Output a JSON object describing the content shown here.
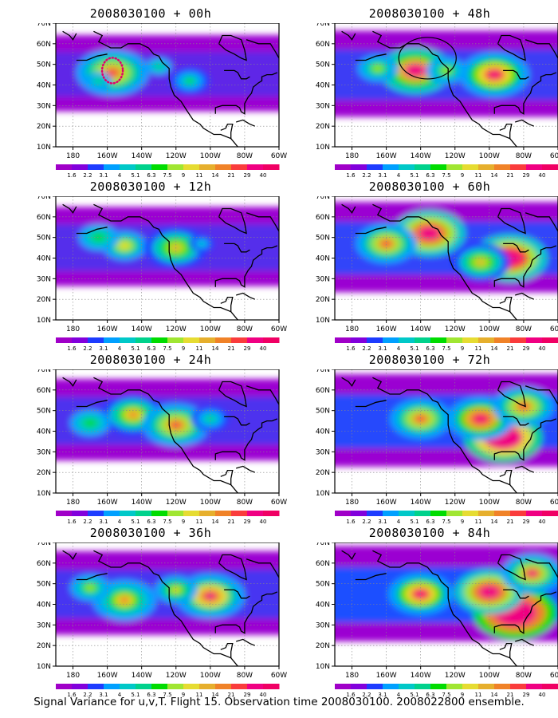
{
  "panels": [
    {
      "title": "2008030100 + 00h",
      "intensity": 0.28,
      "circle": true,
      "circle_style": "dotted-magenta",
      "hotspots": [
        [
          -157,
          46,
          1.2
        ],
        [
          -130,
          49,
          0.5
        ],
        [
          -112,
          42,
          0.6
        ],
        [
          -165,
          42,
          0.5
        ]
      ]
    },
    {
      "title": "2008030100 + 48h",
      "intensity": 0.55,
      "circle": true,
      "circle_style": "solid-black",
      "hotspots": [
        [
          -143,
          47,
          1.2
        ],
        [
          -97,
          45,
          1.1
        ],
        [
          -125,
          47,
          0.6
        ],
        [
          -165,
          48,
          0.6
        ]
      ]
    },
    {
      "title": "2008030100 + 12h",
      "intensity": 0.36,
      "circle": false,
      "hotspots": [
        [
          -150,
          46,
          0.8
        ],
        [
          -120,
          45,
          0.9
        ],
        [
          -165,
          50,
          0.6
        ],
        [
          -105,
          47,
          0.4
        ]
      ]
    },
    {
      "title": "2008030100 + 60h",
      "intensity": 0.66,
      "circle": false,
      "hotspots": [
        [
          -135,
          52,
          1.2
        ],
        [
          -88,
          40,
          1.3
        ],
        [
          -160,
          47,
          0.8
        ],
        [
          -105,
          38,
          0.7
        ]
      ]
    },
    {
      "title": "2008030100 + 24h",
      "intensity": 0.42,
      "circle": false,
      "hotspots": [
        [
          -145,
          48,
          0.9
        ],
        [
          -120,
          43,
          1.0
        ],
        [
          -170,
          44,
          0.6
        ],
        [
          -100,
          46,
          0.5
        ]
      ]
    },
    {
      "title": "2008030100 + 72h",
      "intensity": 0.72,
      "circle": false,
      "hotspots": [
        [
          -92,
          37,
          1.4
        ],
        [
          -105,
          46,
          1.0
        ],
        [
          -140,
          46,
          0.8
        ],
        [
          -80,
          52,
          0.8
        ]
      ]
    },
    {
      "title": "2008030100 + 36h",
      "intensity": 0.48,
      "circle": false,
      "hotspots": [
        [
          -150,
          42,
          0.9
        ],
        [
          -100,
          44,
          1.1
        ],
        [
          -120,
          47,
          0.7
        ],
        [
          -170,
          48,
          0.6
        ]
      ]
    },
    {
      "title": "2008030100 + 84h",
      "intensity": 0.8,
      "circle": false,
      "hotspots": [
        [
          -85,
          36,
          1.6
        ],
        [
          -100,
          46,
          1.1
        ],
        [
          -140,
          45,
          0.9
        ],
        [
          -75,
          55,
          0.8
        ]
      ]
    }
  ],
  "axes": {
    "x_ticks": [
      "180",
      "160W",
      "140W",
      "120W",
      "100W",
      "80W",
      "60W"
    ],
    "y_ticks": [
      "10N",
      "20N",
      "30N",
      "40N",
      "50N",
      "60N",
      "70N"
    ],
    "lon_range": [
      -190,
      -60
    ],
    "lat_range": [
      10,
      70
    ]
  },
  "colorbar": {
    "labels": [
      "1.6",
      "2.2",
      "3.1",
      "4",
      "5.1",
      "6.3",
      "7.5",
      "9",
      "11",
      "14",
      "21",
      "29",
      "40"
    ],
    "colors": [
      "#a000c8",
      "#8200dc",
      "#1e3cff",
      "#00a0ff",
      "#00c8c8",
      "#00d28c",
      "#00dc00",
      "#a0e632",
      "#e6dc32",
      "#e6af2d",
      "#f08228",
      "#fa3c3c",
      "#f00082"
    ]
  },
  "caption": "Signal Variance for u,v,T. Flight 15. Observation time 2008030100. 2008022800 ensemble."
}
